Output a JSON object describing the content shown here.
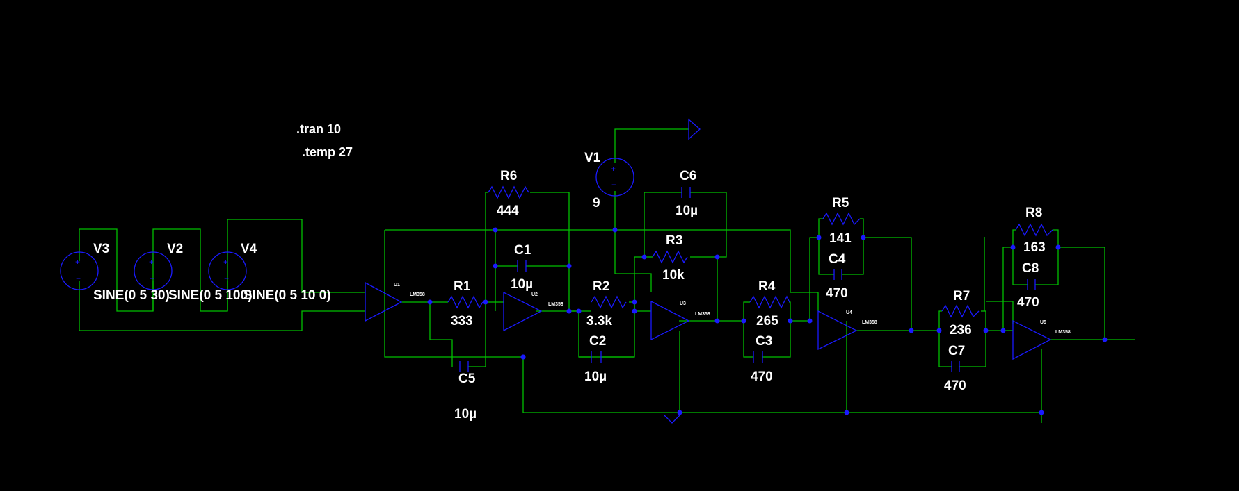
{
  "directives": [
    ".tran 10",
    ".temp 27"
  ],
  "sources": [
    {
      "ref": "V3",
      "value": "SINE(0 5 30)"
    },
    {
      "ref": "V2",
      "value": "SINE(0 5 100)"
    },
    {
      "ref": "V4",
      "value": "SINE(0 5 10 0)"
    },
    {
      "ref": "V1",
      "value": "9"
    }
  ],
  "passives": [
    {
      "ref": "R6",
      "value": "444",
      "kind": "resistor"
    },
    {
      "ref": "R1",
      "value": "333",
      "kind": "resistor"
    },
    {
      "ref": "R2",
      "value": "3.3k",
      "kind": "resistor"
    },
    {
      "ref": "R3",
      "value": "10k",
      "kind": "resistor"
    },
    {
      "ref": "R4",
      "value": "265",
      "kind": "resistor"
    },
    {
      "ref": "R5",
      "value": "141",
      "kind": "resistor"
    },
    {
      "ref": "R7",
      "value": "236",
      "kind": "resistor"
    },
    {
      "ref": "R8",
      "value": "163",
      "kind": "resistor"
    },
    {
      "ref": "C1",
      "value": "10µ",
      "kind": "capacitor"
    },
    {
      "ref": "C2",
      "value": "10µ",
      "kind": "capacitor"
    },
    {
      "ref": "C3",
      "value": "470",
      "kind": "capacitor"
    },
    {
      "ref": "C4",
      "value": "470",
      "kind": "capacitor"
    },
    {
      "ref": "C5",
      "value": "10µ",
      "kind": "capacitor"
    },
    {
      "ref": "C6",
      "value": "10µ",
      "kind": "capacitor"
    },
    {
      "ref": "C7",
      "value": "470",
      "kind": "capacitor"
    },
    {
      "ref": "C8",
      "value": "470",
      "kind": "capacitor"
    }
  ],
  "opamps": [
    {
      "ref": "U1",
      "model": "LM358"
    },
    {
      "ref": "U2",
      "model": "LM358"
    },
    {
      "ref": "U3",
      "model": "LM358"
    },
    {
      "ref": "U4",
      "model": "LM358"
    },
    {
      "ref": "U5",
      "model": "LM358"
    }
  ],
  "colors": {
    "background": "#000000",
    "wire": "#00c000",
    "component": "#1a1aff",
    "text": "#ffffff"
  }
}
